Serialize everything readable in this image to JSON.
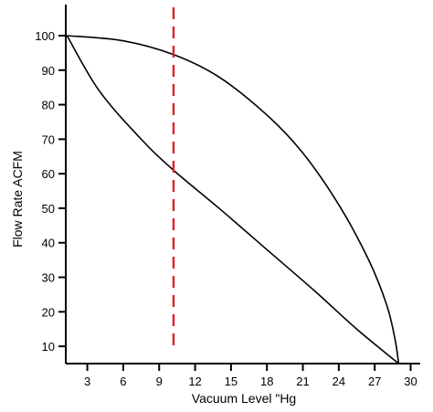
{
  "chart_data": {
    "type": "line",
    "xlabel": "Vacuum Level \"Hg",
    "ylabel": "Flow Rate ACFM",
    "xlim": [
      1.2,
      30.8
    ],
    "ylim": [
      5,
      109
    ],
    "x_ticks": [
      3,
      6,
      9,
      12,
      15,
      18,
      21,
      24,
      27,
      30
    ],
    "y_ticks": [
      10,
      20,
      30,
      40,
      50,
      60,
      70,
      80,
      90,
      100
    ],
    "series": [
      {
        "points": [
          [
            1.3,
            100
          ],
          [
            6,
            98.5
          ],
          [
            10.2,
            94.5
          ],
          [
            14,
            88
          ],
          [
            18,
            77
          ],
          [
            21,
            66
          ],
          [
            24,
            51
          ],
          [
            26.5,
            35
          ],
          [
            28,
            22
          ],
          [
            28.7,
            12
          ],
          [
            29,
            5
          ]
        ]
      },
      {
        "points": [
          [
            1.3,
            100
          ],
          [
            4,
            84
          ],
          [
            7.5,
            70
          ],
          [
            10.2,
            61
          ],
          [
            14,
            50
          ],
          [
            18,
            38
          ],
          [
            22,
            26
          ],
          [
            25.5,
            15
          ],
          [
            29,
            5
          ]
        ]
      }
    ],
    "reference_line": {
      "x": 10.2,
      "color": "#e0202a",
      "style": "dashed"
    },
    "colors": {
      "curve": "#000000",
      "axis": "#000000"
    },
    "grid": false,
    "legend": "none"
  }
}
